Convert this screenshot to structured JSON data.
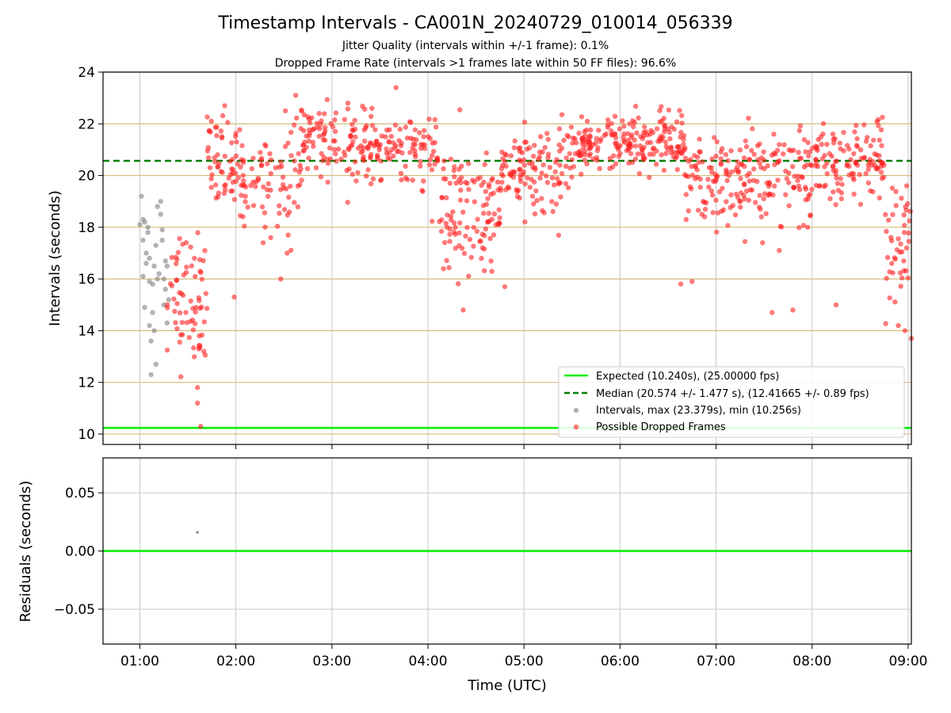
{
  "header": {
    "title": "Timestamp Intervals - CA001N_20240729_010014_056339",
    "subtitle1": "Jitter Quality (intervals within +/-1 frame): 0.1%",
    "subtitle2": "Dropped Frame Rate (intervals >1 frames late within 50 FF files): 96.6%"
  },
  "colors": {
    "expected": "#00ee00",
    "median": "#007f00",
    "dropped": "#ff2020",
    "intervals": "#808080",
    "hgrid_top": "#d2bd79",
    "grid": "#c8c8c8"
  },
  "chart_data": [
    {
      "type": "scatter",
      "panel": "intervals",
      "ylabel": "Intervals (seconds)",
      "ylim": [
        9.6,
        24
      ],
      "yticks": [
        "10",
        "12",
        "14",
        "16",
        "18",
        "20",
        "22",
        "24"
      ],
      "xlim": [
        "00:37",
        "09:02"
      ],
      "grid": true,
      "legend_position": "lower-right",
      "expected_line": {
        "label": "Expected (10.240s), (25.00000 fps)",
        "y": 10.24
      },
      "median_line": {
        "label": "Median (20.574 +/- 1.477 s), (12.41665 +/- 0.89 fps)",
        "y": 20.57
      },
      "series": [
        {
          "name": "Intervals, max (23.379s), min (10.256s)",
          "points": [
            [
              "01:00",
              18.1
            ],
            [
              "01:01",
              19.2
            ],
            [
              "01:02",
              17.5
            ],
            [
              "01:03",
              18.2
            ],
            [
              "01:04",
              16.6
            ],
            [
              "01:05",
              17.8
            ],
            [
              "01:06",
              14.2
            ],
            [
              "01:07",
              13.6
            ],
            [
              "01:07",
              12.3
            ],
            [
              "01:08",
              15.8
            ],
            [
              "01:09",
              14.0
            ],
            [
              "01:10",
              12.7
            ],
            [
              "01:11",
              18.8
            ],
            [
              "01:12",
              16.2
            ],
            [
              "01:13",
              19.0
            ],
            [
              "01:14",
              17.9
            ],
            [
              "01:15",
              15.0
            ],
            [
              "01:16",
              16.7
            ],
            [
              "01:17",
              14.3
            ],
            [
              "01:18",
              15.2
            ],
            [
              "01:02",
              18.3
            ],
            [
              "01:04",
              17.0
            ],
            [
              "01:06",
              15.9
            ],
            [
              "01:09",
              16.5
            ],
            [
              "01:13",
              18.5
            ],
            [
              "01:15",
              16.0
            ],
            [
              "01:03",
              14.9
            ],
            [
              "01:06",
              16.8
            ],
            [
              "01:10",
              17.3
            ],
            [
              "01:16",
              15.6
            ],
            [
              "01:02",
              16.1
            ],
            [
              "01:05",
              18.0
            ],
            [
              "01:11",
              16.0
            ],
            [
              "01:14",
              17.5
            ],
            [
              "01:17",
              16.5
            ],
            [
              "01:08",
              14.7
            ]
          ]
        },
        {
          "name": "Possible Dropped Frames",
          "segments": [
            {
              "start": "01:17",
              "end": "01:42",
              "center": 15.4,
              "spread": 2.4,
              "count": 70
            },
            {
              "start": "01:42",
              "end": "02:05",
              "center": 20.4,
              "spread": 1.6,
              "count": 70
            },
            {
              "start": "02:05",
              "end": "02:40",
              "center": 19.9,
              "spread": 2.2,
              "count": 70
            },
            {
              "start": "02:40",
              "end": "03:55",
              "center": 21.2,
              "spread": 1.2,
              "count": 180
            },
            {
              "start": "03:55",
              "end": "04:07",
              "center": 20.8,
              "spread": 1.4,
              "count": 30
            },
            {
              "start": "04:07",
              "end": "04:45",
              "center": 18.4,
              "spread": 2.3,
              "count": 110
            },
            {
              "start": "04:45",
              "end": "05:30",
              "center": 20.2,
              "spread": 1.6,
              "count": 120
            },
            {
              "start": "05:30",
              "end": "06:40",
              "center": 21.2,
              "spread": 1.0,
              "count": 200
            },
            {
              "start": "06:40",
              "end": "07:15",
              "center": 19.8,
              "spread": 1.7,
              "count": 90
            },
            {
              "start": "07:15",
              "end": "08:00",
              "center": 19.9,
              "spread": 1.8,
              "count": 120
            },
            {
              "start": "08:00",
              "end": "08:45",
              "center": 20.6,
              "spread": 1.4,
              "count": 120
            },
            {
              "start": "08:45",
              "end": "09:02",
              "center": 17.4,
              "spread": 2.4,
              "count": 45
            }
          ],
          "extra_points": [
            [
              "01:59",
              15.3
            ],
            [
              "02:17",
              17.4
            ],
            [
              "02:28",
              16.0
            ],
            [
              "02:32",
              17.0
            ],
            [
              "03:40",
              23.4
            ],
            [
              "04:22",
              14.8
            ],
            [
              "04:48",
              15.7
            ],
            [
              "06:38",
              15.8
            ],
            [
              "07:48",
              14.8
            ],
            [
              "01:36",
              11.8
            ],
            [
              "01:36",
              11.2
            ],
            [
              "01:40",
              13.2
            ],
            [
              "01:38",
              10.3
            ],
            [
              "02:52",
              22.4
            ],
            [
              "03:10",
              22.8
            ],
            [
              "09:02",
              13.7
            ],
            [
              "08:58",
              14.0
            ],
            [
              "07:29",
              17.4
            ],
            [
              "04:40",
              18.3
            ],
            [
              "03:25",
              22.6
            ],
            [
              "01:53",
              22.7
            ],
            [
              "08:15",
              15.0
            ],
            [
              "07:35",
              14.7
            ],
            [
              "06:45",
              15.9
            ]
          ]
        }
      ]
    },
    {
      "type": "scatter",
      "panel": "residuals",
      "xlabel": "Time (UTC)",
      "ylabel": "Residuals (seconds)",
      "ylim": [
        -0.08,
        0.08
      ],
      "yticks": [
        "0.05",
        "0.00",
        "−0.05"
      ],
      "xlim": [
        "00:37",
        "09:02"
      ],
      "xticks": [
        "01:00",
        "02:00",
        "03:00",
        "04:00",
        "05:00",
        "06:00",
        "07:00",
        "08:00",
        "09:00"
      ],
      "grid": true,
      "zero_line": 0.0,
      "points": [
        [
          "01:36",
          0.016
        ]
      ]
    }
  ]
}
